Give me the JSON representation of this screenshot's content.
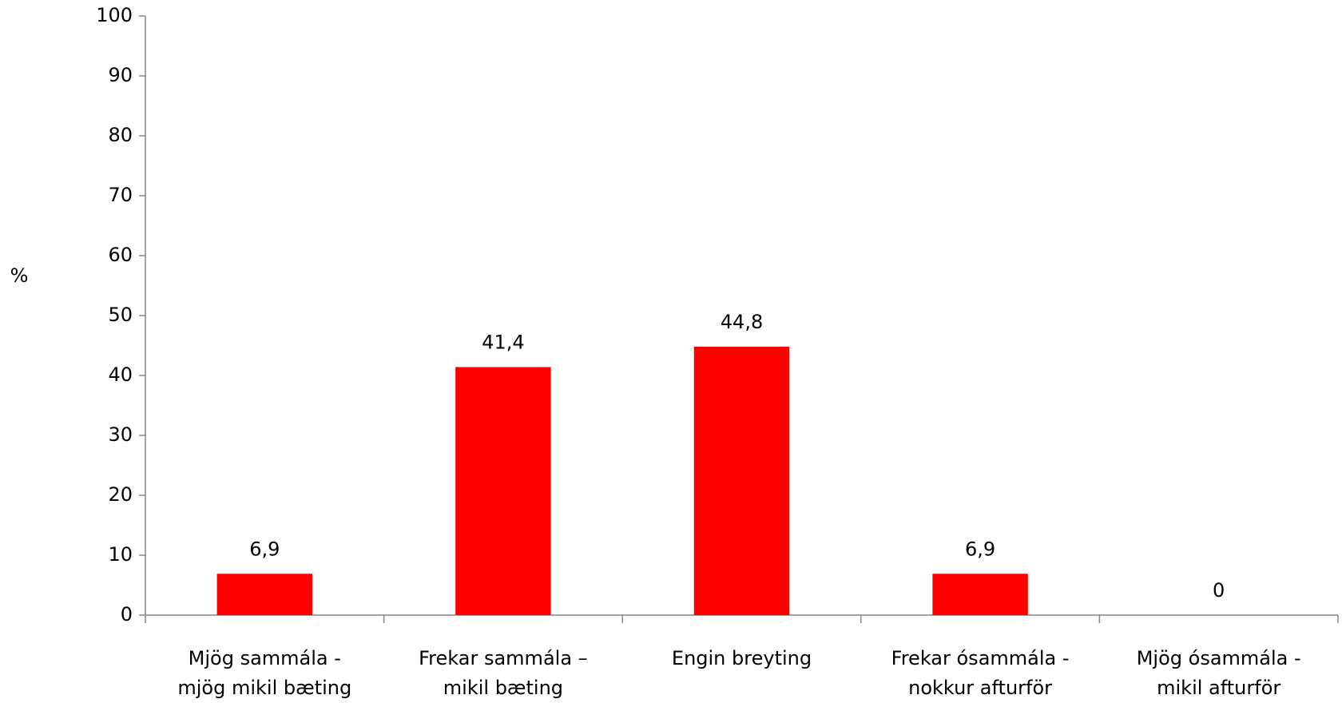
{
  "chart_data": {
    "type": "bar",
    "y_label": "%",
    "categories": [
      [
        "Mjög sammála -",
        "mjög mikil bæting"
      ],
      [
        "Frekar sammála –",
        "mikil bæting"
      ],
      [
        "Engin breyting"
      ],
      [
        "Frekar ósammála -",
        "nokkur afturför"
      ],
      [
        "Mjög ósammála -",
        "mikil afturför"
      ]
    ],
    "values": [
      6.9,
      41.4,
      44.8,
      6.9,
      0
    ],
    "value_labels": [
      "6,9",
      "41,4",
      "44,8",
      "6,9",
      "0"
    ],
    "color": "#ff0000",
    "ylim": [
      0,
      100
    ],
    "yticks": [
      0,
      10,
      20,
      30,
      40,
      50,
      60,
      70,
      80,
      90,
      100
    ],
    "grid": false
  }
}
